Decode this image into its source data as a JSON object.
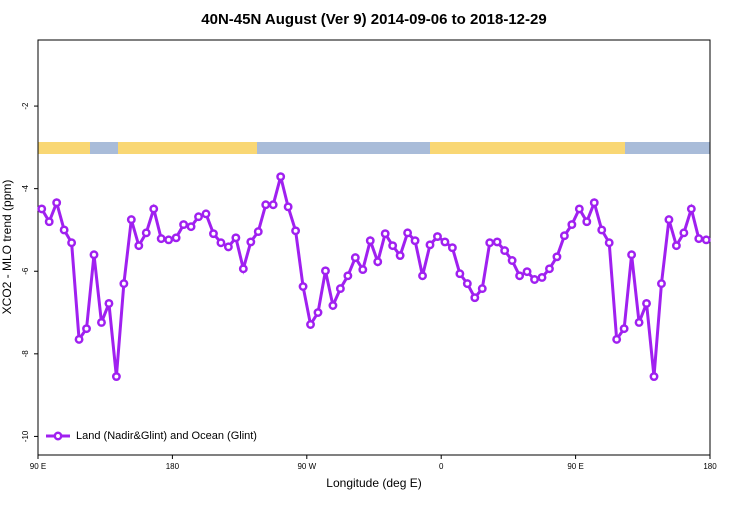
{
  "chart_data": {
    "type": "line",
    "title": "40N-45N August (Ver 9)   2014-09-06 to 2018-12-29",
    "x_label": "Longitude (deg E)",
    "y_label": "XCO2 - MLO trend (ppm)",
    "x": [
      92.5,
      97.5,
      102.5,
      107.5,
      112.5,
      117.5,
      122.5,
      127.5,
      132.5,
      137.5,
      142.5,
      147.5,
      152.5,
      157.5,
      162.5,
      167.5,
      172.5,
      177.5,
      182.5,
      187.5,
      192.5,
      197.5,
      202.5,
      207.5,
      212.5,
      217.5,
      222.5,
      227.5,
      232.5,
      237.5,
      242.5,
      247.5,
      252.5,
      257.5,
      262.5,
      267.5,
      272.5,
      277.5,
      282.5,
      287.5,
      292.5,
      297.5,
      302.5,
      307.5,
      312.5,
      317.5,
      322.5,
      327.5,
      332.5,
      337.5,
      342.5,
      347.5,
      352.5,
      357.5,
      362.5,
      367.5,
      372.5,
      377.5,
      382.5,
      387.5,
      392.5,
      397.5,
      402.5,
      407.5,
      412.5,
      417.5,
      422.5,
      427.5,
      432.5,
      437.5,
      442.5,
      447.5,
      452.5,
      457.5,
      462.5,
      467.5,
      472.5,
      477.5,
      482.5,
      487.5,
      492.5,
      497.5,
      502.5,
      507.5,
      512.5,
      517.5,
      522.5,
      527.5,
      532.5,
      537.5
    ],
    "series": [
      {
        "name": "Land (Nadir&Glint) and Ocean (Glint)",
        "color": "#a020f0",
        "values": [
          -4.49,
          -4.8,
          -4.34,
          -5.0,
          -5.31,
          -7.65,
          -7.39,
          -5.6,
          -7.24,
          -6.78,
          -8.55,
          -6.3,
          -4.75,
          -5.38,
          -5.07,
          -4.49,
          -5.21,
          -5.24,
          -5.19,
          -4.87,
          -4.92,
          -4.68,
          -4.61,
          -5.09,
          -5.31,
          -5.41,
          -5.19,
          -5.94,
          -5.29,
          -5.04,
          -4.39,
          -4.39,
          -3.71,
          -4.44,
          -5.02,
          -6.37,
          -7.29,
          -7.0,
          -5.99,
          -6.83,
          -6.42,
          -6.11,
          -5.67,
          -5.96,
          -5.26,
          -5.77,
          -5.09,
          -5.38,
          -5.62,
          -5.07,
          -5.26,
          -6.11,
          -5.36,
          -5.16,
          -5.29,
          -5.43,
          -6.06,
          -6.3,
          -6.64,
          -6.42,
          -5.31,
          -5.29,
          -5.5,
          -5.74,
          -6.11,
          -6.01,
          -6.2,
          -6.15,
          -5.94,
          -5.65,
          -5.14,
          -4.87,
          -4.49,
          -4.8,
          -4.34,
          -5.0,
          -5.31,
          -7.65,
          -7.39,
          -5.6,
          -7.24,
          -6.78,
          -8.55,
          -6.3,
          -4.75,
          -5.38,
          -5.07,
          -4.49,
          -5.21,
          -5.24
        ]
      }
    ],
    "xlim": [
      90,
      540
    ],
    "xticks": [
      {
        "value": 90,
        "label": "90 E"
      },
      180,
      {
        "value": 270,
        "label": "90 W"
      },
      {
        "value": 360,
        "label": "0"
      },
      {
        "value": 450,
        "label": "90 E"
      },
      {
        "value": 540,
        "label": "180"
      }
    ],
    "ylim": [
      -10.45,
      -0.4
    ],
    "yticks": [
      -2,
      -4,
      -6,
      -8,
      -10
    ],
    "grid": false,
    "legend": "bottom-left"
  }
}
